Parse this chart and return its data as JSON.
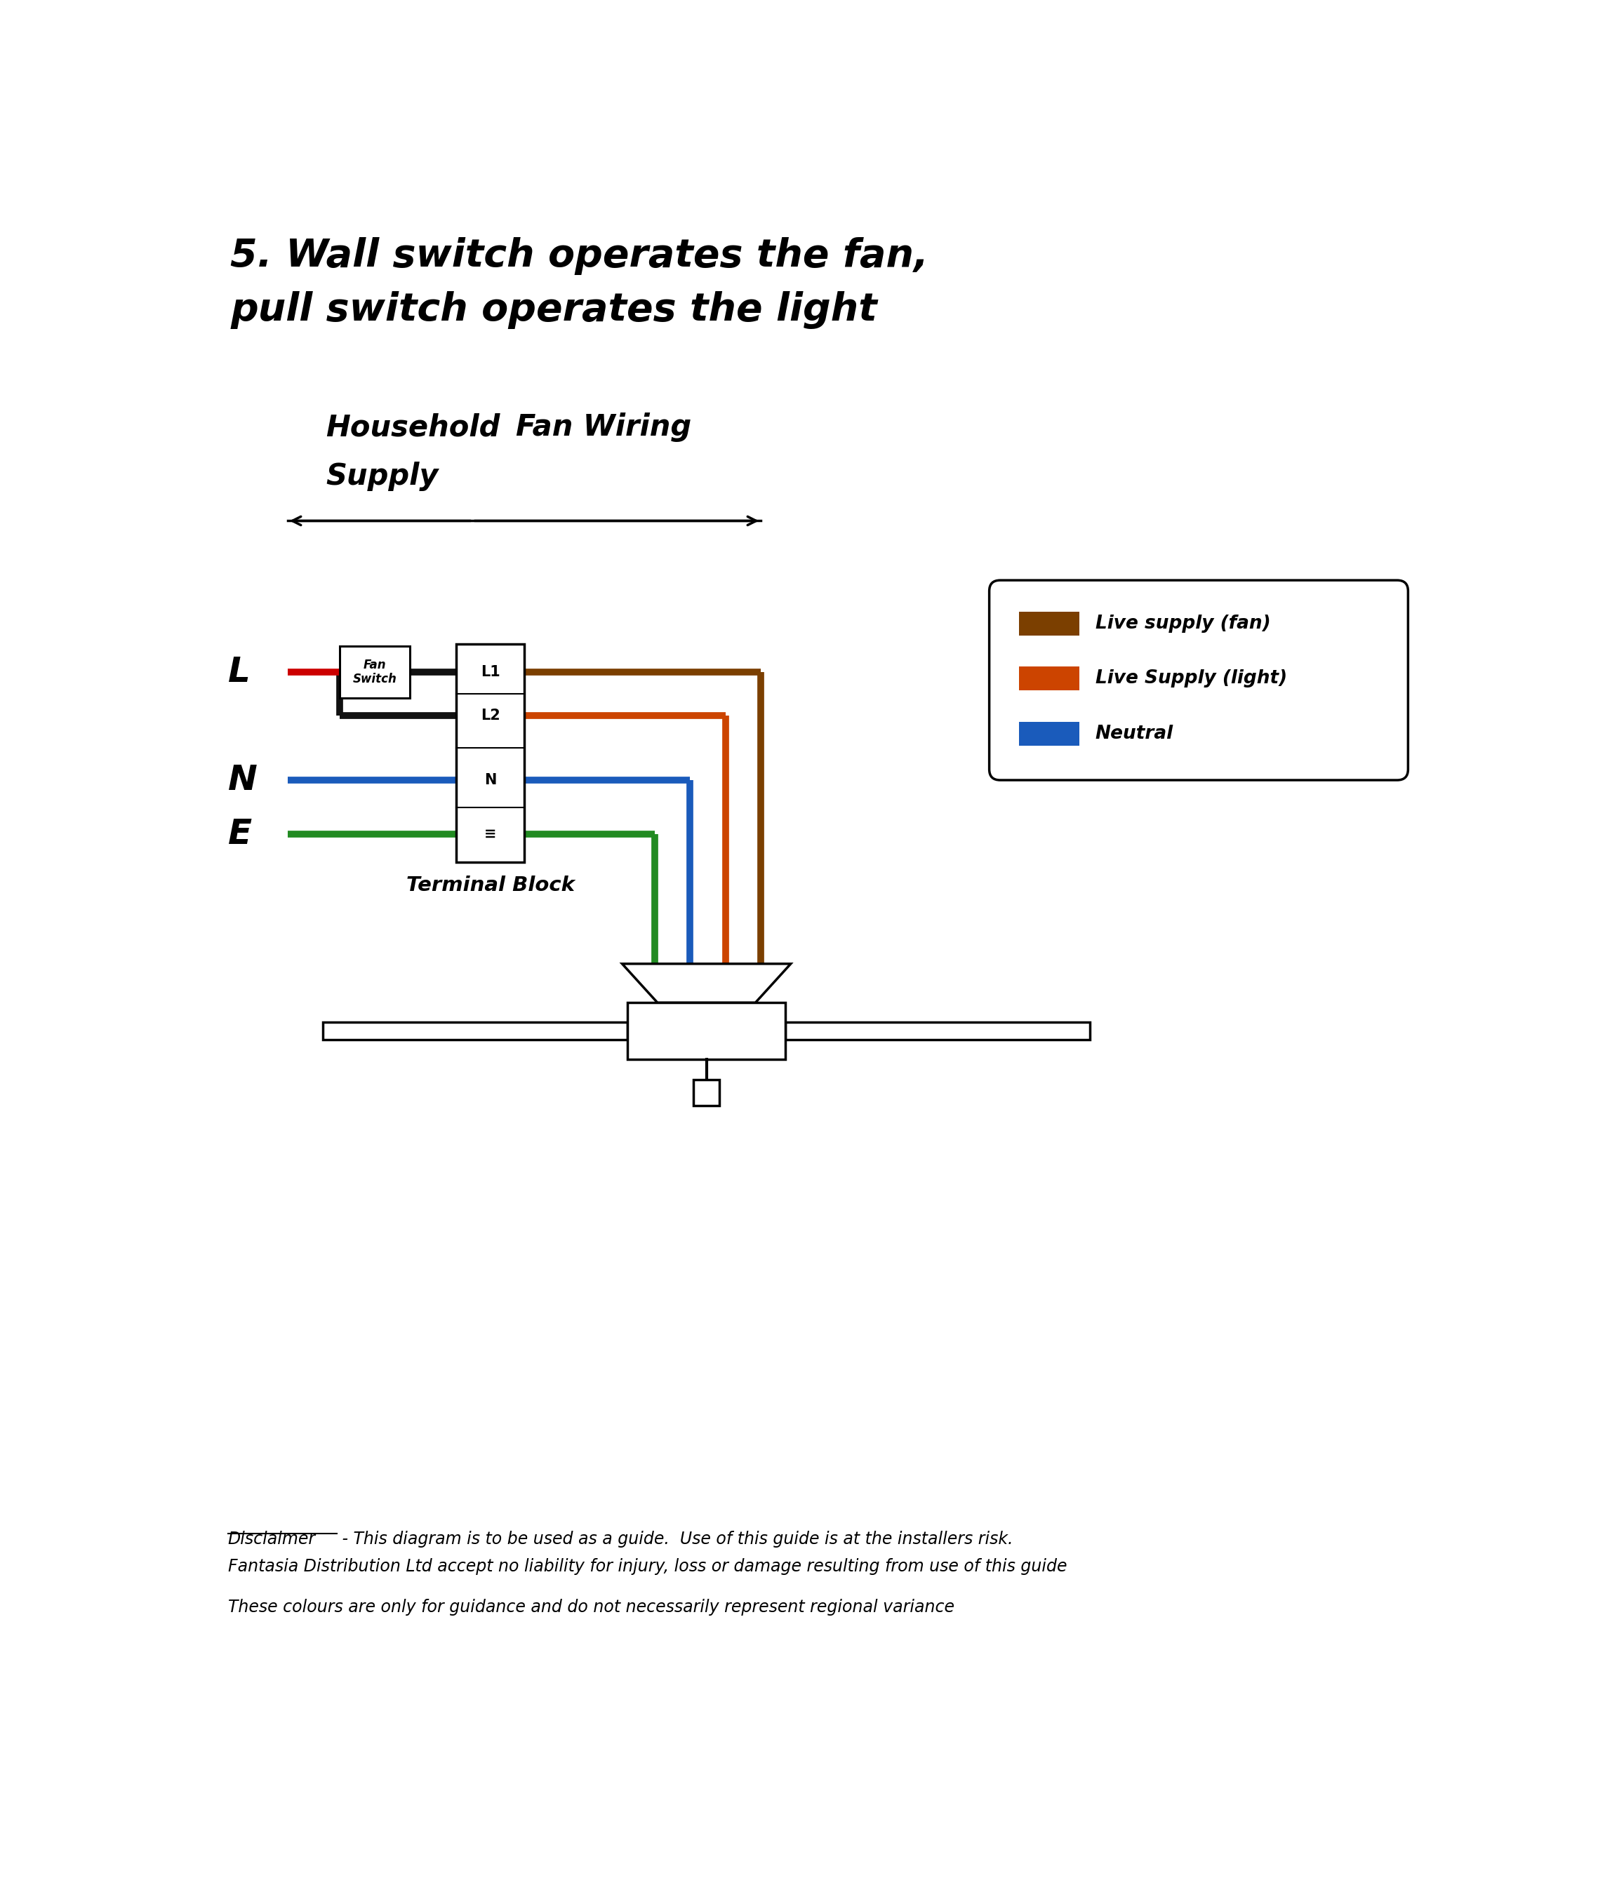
{
  "title_line1": "5. Wall switch operates the fan,",
  "title_line2": "pull switch operates the light",
  "label_household": "Household",
  "label_fan_wiring": "Fan Wiring",
  "label_supply": "Supply",
  "label_L": "L",
  "label_N": "N",
  "label_E": "E",
  "label_terminal": "Terminal Block",
  "label_fan_switch": "Fan\nSwitch",
  "terminal_labels": [
    "L1",
    "L2",
    "N",
    "≡"
  ],
  "legend_items": [
    {
      "color": "#7B3F00",
      "label": "Live supply (fan)"
    },
    {
      "color": "#CC4400",
      "label": "Live Supply (light)"
    },
    {
      "color": "#1A5BBB",
      "label": "Neutral"
    }
  ],
  "disclaimer1_underline": "Disclaimer",
  "disclaimer1_rest": " - This diagram is to be used as a guide.  Use of this guide is at the installers risk.",
  "disclaimer2": "Fantasia Distribution Ltd accept no liability for injury, loss or damage resulting from use of this guide",
  "disclaimer3": "These colours are only for guidance and do not necessarily represent regional variance",
  "colors": {
    "brown": "#7B3F00",
    "orange": "#CC4400",
    "blue": "#1A5BBB",
    "green": "#228B22",
    "red": "#CC0000",
    "black": "#111111",
    "white": "#FFFFFF"
  },
  "bg": "#FFFFFF"
}
